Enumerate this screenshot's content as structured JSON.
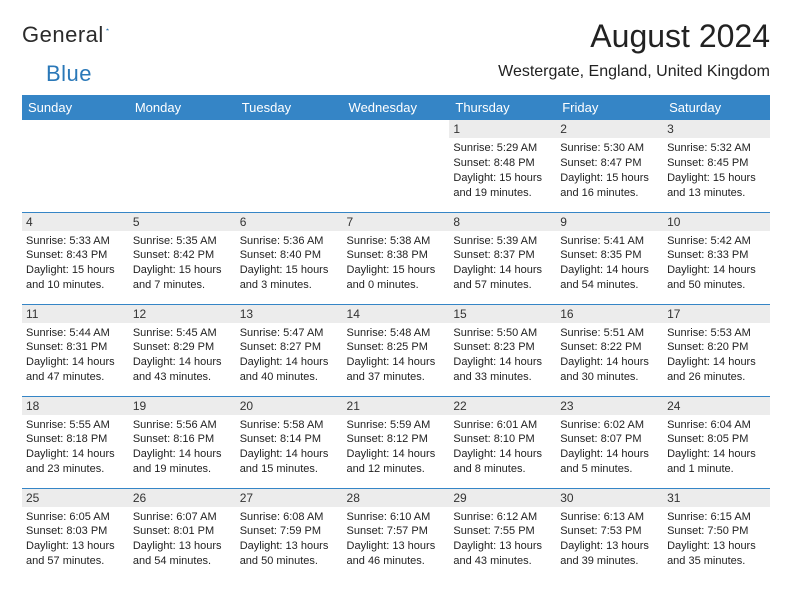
{
  "logo": {
    "text1": "General",
    "text2": "Blue"
  },
  "title": "August 2024",
  "location": "Westergate, England, United Kingdom",
  "colors": {
    "header_bg": "#3585c6",
    "header_text": "#ffffff",
    "daynum_bg": "#ececec",
    "rule": "#3585c6",
    "logo_blue": "#2a78b8"
  },
  "day_headers": [
    "Sunday",
    "Monday",
    "Tuesday",
    "Wednesday",
    "Thursday",
    "Friday",
    "Saturday"
  ],
  "weeks": [
    [
      {
        "n": "",
        "lines": []
      },
      {
        "n": "",
        "lines": []
      },
      {
        "n": "",
        "lines": []
      },
      {
        "n": "",
        "lines": []
      },
      {
        "n": "1",
        "lines": [
          "Sunrise: 5:29 AM",
          "Sunset: 8:48 PM",
          "Daylight: 15 hours and 19 minutes."
        ]
      },
      {
        "n": "2",
        "lines": [
          "Sunrise: 5:30 AM",
          "Sunset: 8:47 PM",
          "Daylight: 15 hours and 16 minutes."
        ]
      },
      {
        "n": "3",
        "lines": [
          "Sunrise: 5:32 AM",
          "Sunset: 8:45 PM",
          "Daylight: 15 hours and 13 minutes."
        ]
      }
    ],
    [
      {
        "n": "4",
        "lines": [
          "Sunrise: 5:33 AM",
          "Sunset: 8:43 PM",
          "Daylight: 15 hours and 10 minutes."
        ]
      },
      {
        "n": "5",
        "lines": [
          "Sunrise: 5:35 AM",
          "Sunset: 8:42 PM",
          "Daylight: 15 hours and 7 minutes."
        ]
      },
      {
        "n": "6",
        "lines": [
          "Sunrise: 5:36 AM",
          "Sunset: 8:40 PM",
          "Daylight: 15 hours and 3 minutes."
        ]
      },
      {
        "n": "7",
        "lines": [
          "Sunrise: 5:38 AM",
          "Sunset: 8:38 PM",
          "Daylight: 15 hours and 0 minutes."
        ]
      },
      {
        "n": "8",
        "lines": [
          "Sunrise: 5:39 AM",
          "Sunset: 8:37 PM",
          "Daylight: 14 hours and 57 minutes."
        ]
      },
      {
        "n": "9",
        "lines": [
          "Sunrise: 5:41 AM",
          "Sunset: 8:35 PM",
          "Daylight: 14 hours and 54 minutes."
        ]
      },
      {
        "n": "10",
        "lines": [
          "Sunrise: 5:42 AM",
          "Sunset: 8:33 PM",
          "Daylight: 14 hours and 50 minutes."
        ]
      }
    ],
    [
      {
        "n": "11",
        "lines": [
          "Sunrise: 5:44 AM",
          "Sunset: 8:31 PM",
          "Daylight: 14 hours and 47 minutes."
        ]
      },
      {
        "n": "12",
        "lines": [
          "Sunrise: 5:45 AM",
          "Sunset: 8:29 PM",
          "Daylight: 14 hours and 43 minutes."
        ]
      },
      {
        "n": "13",
        "lines": [
          "Sunrise: 5:47 AM",
          "Sunset: 8:27 PM",
          "Daylight: 14 hours and 40 minutes."
        ]
      },
      {
        "n": "14",
        "lines": [
          "Sunrise: 5:48 AM",
          "Sunset: 8:25 PM",
          "Daylight: 14 hours and 37 minutes."
        ]
      },
      {
        "n": "15",
        "lines": [
          "Sunrise: 5:50 AM",
          "Sunset: 8:23 PM",
          "Daylight: 14 hours and 33 minutes."
        ]
      },
      {
        "n": "16",
        "lines": [
          "Sunrise: 5:51 AM",
          "Sunset: 8:22 PM",
          "Daylight: 14 hours and 30 minutes."
        ]
      },
      {
        "n": "17",
        "lines": [
          "Sunrise: 5:53 AM",
          "Sunset: 8:20 PM",
          "Daylight: 14 hours and 26 minutes."
        ]
      }
    ],
    [
      {
        "n": "18",
        "lines": [
          "Sunrise: 5:55 AM",
          "Sunset: 8:18 PM",
          "Daylight: 14 hours and 23 minutes."
        ]
      },
      {
        "n": "19",
        "lines": [
          "Sunrise: 5:56 AM",
          "Sunset: 8:16 PM",
          "Daylight: 14 hours and 19 minutes."
        ]
      },
      {
        "n": "20",
        "lines": [
          "Sunrise: 5:58 AM",
          "Sunset: 8:14 PM",
          "Daylight: 14 hours and 15 minutes."
        ]
      },
      {
        "n": "21",
        "lines": [
          "Sunrise: 5:59 AM",
          "Sunset: 8:12 PM",
          "Daylight: 14 hours and 12 minutes."
        ]
      },
      {
        "n": "22",
        "lines": [
          "Sunrise: 6:01 AM",
          "Sunset: 8:10 PM",
          "Daylight: 14 hours and 8 minutes."
        ]
      },
      {
        "n": "23",
        "lines": [
          "Sunrise: 6:02 AM",
          "Sunset: 8:07 PM",
          "Daylight: 14 hours and 5 minutes."
        ]
      },
      {
        "n": "24",
        "lines": [
          "Sunrise: 6:04 AM",
          "Sunset: 8:05 PM",
          "Daylight: 14 hours and 1 minute."
        ]
      }
    ],
    [
      {
        "n": "25",
        "lines": [
          "Sunrise: 6:05 AM",
          "Sunset: 8:03 PM",
          "Daylight: 13 hours and 57 minutes."
        ]
      },
      {
        "n": "26",
        "lines": [
          "Sunrise: 6:07 AM",
          "Sunset: 8:01 PM",
          "Daylight: 13 hours and 54 minutes."
        ]
      },
      {
        "n": "27",
        "lines": [
          "Sunrise: 6:08 AM",
          "Sunset: 7:59 PM",
          "Daylight: 13 hours and 50 minutes."
        ]
      },
      {
        "n": "28",
        "lines": [
          "Sunrise: 6:10 AM",
          "Sunset: 7:57 PM",
          "Daylight: 13 hours and 46 minutes."
        ]
      },
      {
        "n": "29",
        "lines": [
          "Sunrise: 6:12 AM",
          "Sunset: 7:55 PM",
          "Daylight: 13 hours and 43 minutes."
        ]
      },
      {
        "n": "30",
        "lines": [
          "Sunrise: 6:13 AM",
          "Sunset: 7:53 PM",
          "Daylight: 13 hours and 39 minutes."
        ]
      },
      {
        "n": "31",
        "lines": [
          "Sunrise: 6:15 AM",
          "Sunset: 7:50 PM",
          "Daylight: 13 hours and 35 minutes."
        ]
      }
    ]
  ]
}
